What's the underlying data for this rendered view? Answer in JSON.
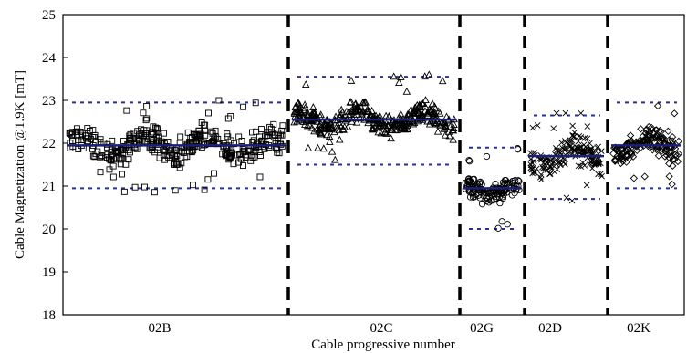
{
  "chart_data": {
    "type": "scatter",
    "title": "",
    "xlabel": "Cable progressive number",
    "ylabel": "Cable Magnetization @1.9K [mT]",
    "ylim": [
      18,
      25
    ],
    "yticks": [
      18,
      19,
      20,
      21,
      22,
      23,
      24,
      25
    ],
    "grid": false,
    "groups": [
      {
        "label": "02B",
        "count": 380,
        "mean": 21.95,
        "lower_limit": 20.95,
        "upper_limit": 22.95,
        "marker": "square",
        "spread": 0.45
      },
      {
        "label": "02C",
        "count": 370,
        "mean": 22.55,
        "lower_limit": 21.5,
        "upper_limit": 23.55,
        "marker": "triangle",
        "spread": 0.35
      },
      {
        "label": "02G",
        "count": 140,
        "mean": 20.95,
        "lower_limit": 20.0,
        "upper_limit": 21.9,
        "marker": "circle",
        "spread": 0.3
      },
      {
        "label": "02D",
        "count": 180,
        "mean": 21.7,
        "lower_limit": 20.7,
        "upper_limit": 22.65,
        "marker": "cross",
        "spread": 0.45
      },
      {
        "label": "02K",
        "count": 170,
        "mean": 21.95,
        "lower_limit": 20.95,
        "upper_limit": 22.95,
        "marker": "diamond",
        "spread": 0.4
      }
    ],
    "colors": {
      "mean_line": "#1b1f7a",
      "limit_line": "#2b2f9a",
      "markers": "#000000",
      "separator": "#000000"
    }
  }
}
